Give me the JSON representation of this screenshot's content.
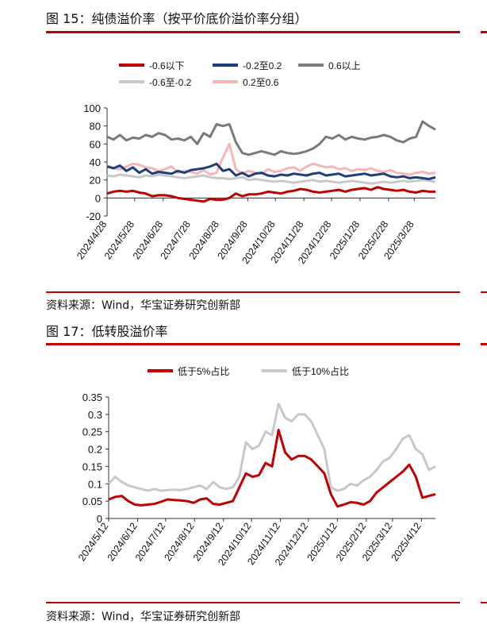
{
  "panels": [
    {
      "title": "图 15：纯债溢价率（按平价底价溢价率分组）",
      "source": "资料来源：Wind，华宝证券研究创新部"
    },
    {
      "title": "图 17：低转股溢价率",
      "source": "资料来源：Wind，华宝证券研究创新部"
    }
  ],
  "colors": {
    "rule": "#c00000",
    "red": "#c00000",
    "blue": "#1f3f7a",
    "dark_gray": "#7a7a7a",
    "light_gray": "#c8c8c8",
    "pink": "#f4b6b6"
  },
  "chart_data": [
    {
      "type": "line",
      "ylim": [
        -20,
        100
      ],
      "yticks": [
        -20,
        0,
        20,
        40,
        60,
        80,
        100
      ],
      "x": [
        "2024/4/28",
        "2024/5/5",
        "2024/5/12",
        "2024/5/19",
        "2024/5/26",
        "2024/6/2",
        "2024/6/9",
        "2024/6/16",
        "2024/6/23",
        "2024/6/30",
        "2024/7/7",
        "2024/7/14",
        "2024/7/21",
        "2024/7/28",
        "2024/8/4",
        "2024/8/11",
        "2024/8/18",
        "2024/8/25",
        "2024/9/1",
        "2024/9/8",
        "2024/9/15",
        "2024/9/22",
        "2024/9/29",
        "2024/10/6",
        "2024/10/13",
        "2024/10/20",
        "2024/10/27",
        "2024/11/3",
        "2024/11/10",
        "2024/11/17",
        "2024/11/24",
        "2024/12/1",
        "2024/12/8",
        "2024/12/15",
        "2024/12/22",
        "2024/12/29",
        "2025/1/5",
        "2025/1/12",
        "2025/1/19",
        "2025/1/26",
        "2025/2/2",
        "2025/2/9",
        "2025/2/16",
        "2025/2/23",
        "2025/3/2",
        "2025/3/9",
        "2025/3/16",
        "2025/3/23",
        "2025/3/30",
        "2025/4/6",
        "2025/4/13",
        "2025/4/20"
      ],
      "xticks": [
        "2024/4/28",
        "2024/5/28",
        "2024/6/28",
        "2024/7/28",
        "2024/8/28",
        "2024/9/28",
        "2024/10/28",
        "2024/11/28",
        "2024/12/28",
        "2025/1/28",
        "2025/2/28",
        "2025/3/28"
      ],
      "legend_position": "top",
      "grid": false,
      "series": [
        {
          "name": "-0.6以下",
          "color_key": "red",
          "width": 3,
          "values": [
            5,
            7,
            8,
            7,
            8,
            6,
            5,
            2,
            3,
            3,
            2,
            0,
            -1,
            -2,
            -3,
            -4,
            -1,
            -2,
            -2,
            0,
            5,
            2,
            4,
            4,
            5,
            7,
            6,
            5,
            7,
            8,
            10,
            9,
            7,
            6,
            7,
            8,
            9,
            7,
            9,
            10,
            11,
            9,
            12,
            10,
            9,
            8,
            9,
            7,
            6,
            8,
            7,
            7
          ]
        },
        {
          "name": "-0.2至0.2",
          "color_key": "blue",
          "width": 3,
          "values": [
            35,
            33,
            36,
            30,
            34,
            28,
            32,
            27,
            29,
            28,
            27,
            30,
            28,
            31,
            32,
            33,
            35,
            38,
            30,
            32,
            25,
            28,
            24,
            27,
            28,
            25,
            24,
            26,
            25,
            27,
            26,
            25,
            27,
            28,
            25,
            26,
            27,
            24,
            25,
            26,
            27,
            25,
            26,
            27,
            24,
            23,
            24,
            22,
            23,
            22,
            21,
            23
          ]
        },
        {
          "name": "0.6以上",
          "color_key": "dark_gray",
          "width": 3,
          "values": [
            68,
            65,
            70,
            64,
            67,
            66,
            70,
            68,
            72,
            70,
            65,
            66,
            64,
            68,
            60,
            72,
            68,
            82,
            80,
            82,
            62,
            50,
            48,
            50,
            52,
            50,
            48,
            52,
            50,
            49,
            50,
            52,
            55,
            60,
            68,
            66,
            70,
            65,
            68,
            66,
            65,
            67,
            68,
            70,
            68,
            64,
            62,
            66,
            68,
            85,
            80,
            76
          ]
        },
        {
          "name": "-0.6至-0.2",
          "color_key": "light_gray",
          "width": 3,
          "values": [
            25,
            24,
            26,
            25,
            24,
            23,
            25,
            24,
            26,
            25,
            24,
            23,
            22,
            23,
            24,
            25,
            23,
            22,
            22,
            21,
            22,
            23,
            20,
            21,
            20,
            19,
            18,
            19,
            18,
            17,
            18,
            19,
            20,
            18,
            19,
            18,
            17,
            18,
            19,
            18,
            17,
            16,
            17,
            18,
            17,
            18,
            19,
            18,
            19,
            20,
            19,
            18
          ]
        },
        {
          "name": "0.2至0.6",
          "color_key": "pink",
          "width": 3,
          "values": [
            36,
            33,
            32,
            35,
            38,
            37,
            34,
            33,
            30,
            32,
            35,
            28,
            30,
            29,
            27,
            31,
            26,
            28,
            45,
            60,
            32,
            27,
            30,
            28,
            27,
            32,
            29,
            30,
            33,
            34,
            30,
            35,
            38,
            36,
            34,
            35,
            32,
            33,
            30,
            32,
            31,
            33,
            30,
            29,
            31,
            28,
            27,
            26,
            28,
            29,
            27,
            28
          ]
        }
      ],
      "legend_rows": [
        [
          "-0.6以下",
          "-0.2至0.2",
          "0.6以上"
        ],
        [
          "-0.6至-0.2",
          "0.2至0.6"
        ]
      ]
    },
    {
      "type": "line",
      "ylim": [
        0,
        0.35
      ],
      "yticks": [
        0,
        0.05,
        0.1,
        0.15,
        0.2,
        0.25,
        0.3,
        0.35
      ],
      "ytick_labels": [
        "0",
        "0.05",
        "0.1",
        "0.15",
        "0.2",
        "0.25",
        "0.3",
        "0.35"
      ],
      "x": [
        "2024/5/12",
        "2024/5/19",
        "2024/5/26",
        "2024/6/2",
        "2024/6/9",
        "2024/6/16",
        "2024/6/23",
        "2024/6/30",
        "2024/7/7",
        "2024/7/14",
        "2024/7/21",
        "2024/7/28",
        "2024/8/4",
        "2024/8/11",
        "2024/8/18",
        "2024/8/25",
        "2024/9/1",
        "2024/9/8",
        "2024/9/15",
        "2024/9/22",
        "2024/9/29",
        "2024/10/6",
        "2024/10/13",
        "2024/10/20",
        "2024/10/27",
        "2024/11/3",
        "2024/11/10",
        "2024/11/17",
        "2024/11/24",
        "2024/12/1",
        "2024/12/8",
        "2024/12/15",
        "2024/12/22",
        "2024/12/29",
        "2025/1/5",
        "2025/1/12",
        "2025/1/19",
        "2025/1/26",
        "2025/2/2",
        "2025/2/9",
        "2025/2/16",
        "2025/2/23",
        "2025/3/2",
        "2025/3/9",
        "2025/3/16",
        "2025/3/23",
        "2025/3/30",
        "2025/4/6",
        "2025/4/13",
        "2025/4/20",
        "2025/4/27"
      ],
      "xticks": [
        "2024/5/12",
        "2024/6/12",
        "2024/7/12",
        "2024/8/12",
        "2024/9/12",
        "2024/10/12",
        "2024/11/12",
        "2024/12/12",
        "2025/1/12",
        "2025/2/12",
        "2025/3/12",
        "2025/4/12"
      ],
      "legend_position": "top",
      "grid": false,
      "series": [
        {
          "name": "低于5%占比",
          "color_key": "red",
          "width": 3,
          "values": [
            0.055,
            0.062,
            0.065,
            0.05,
            0.04,
            0.038,
            0.04,
            0.042,
            0.048,
            0.055,
            0.053,
            0.052,
            0.05,
            0.045,
            0.055,
            0.058,
            0.042,
            0.04,
            0.045,
            0.05,
            0.09,
            0.13,
            0.12,
            0.125,
            0.16,
            0.15,
            0.255,
            0.19,
            0.17,
            0.18,
            0.18,
            0.17,
            0.15,
            0.13,
            0.07,
            0.035,
            0.04,
            0.047,
            0.045,
            0.04,
            0.05,
            0.075,
            0.09,
            0.105,
            0.12,
            0.135,
            0.155,
            0.12,
            0.06,
            0.065,
            0.07
          ]
        },
        {
          "name": "低于10%占比",
          "color_key": "light_gray",
          "width": 3,
          "values": [
            0.1,
            0.12,
            0.105,
            0.095,
            0.09,
            0.085,
            0.08,
            0.085,
            0.08,
            0.082,
            0.083,
            0.082,
            0.085,
            0.09,
            0.095,
            0.085,
            0.105,
            0.09,
            0.085,
            0.09,
            0.12,
            0.22,
            0.2,
            0.21,
            0.25,
            0.24,
            0.33,
            0.29,
            0.28,
            0.3,
            0.3,
            0.28,
            0.24,
            0.2,
            0.09,
            0.08,
            0.085,
            0.1,
            0.095,
            0.11,
            0.12,
            0.14,
            0.165,
            0.175,
            0.2,
            0.23,
            0.24,
            0.2,
            0.185,
            0.14,
            0.15
          ]
        }
      ],
      "legend_rows": [
        [
          "低于5%占比",
          "低于10%占比"
        ]
      ]
    }
  ]
}
